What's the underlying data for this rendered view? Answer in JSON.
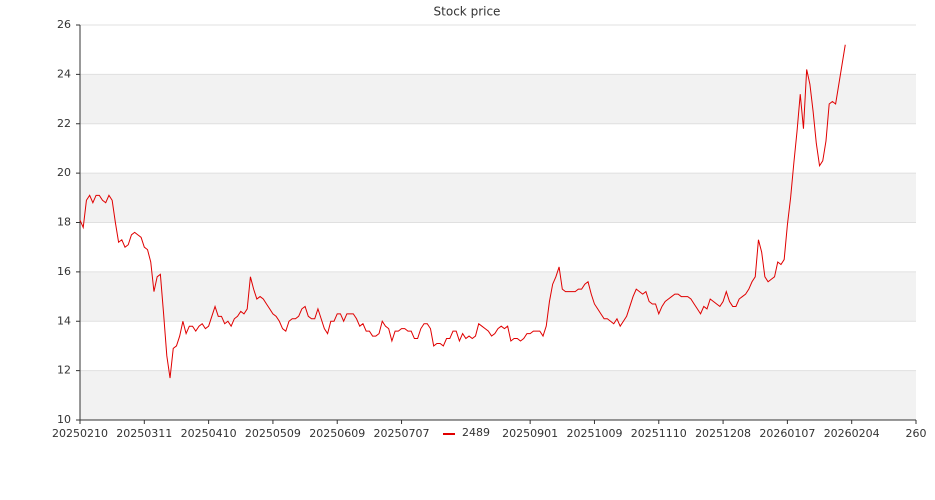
{
  "chart_data": {
    "type": "line",
    "title": "Stock price",
    "series": [
      {
        "name": "2489",
        "color": "#e00000",
        "values": [
          18.1,
          17.8,
          18.9,
          19.1,
          18.8,
          19.1,
          19.1,
          18.9,
          18.8,
          19.1,
          18.9,
          18.0,
          17.2,
          17.3,
          17.0,
          17.1,
          17.5,
          17.6,
          17.5,
          17.4,
          17.0,
          16.9,
          16.4,
          15.2,
          15.8,
          15.9,
          14.3,
          12.6,
          11.7,
          12.9,
          13.0,
          13.4,
          14.0,
          13.5,
          13.8,
          13.8,
          13.6,
          13.8,
          13.9,
          13.7,
          13.8,
          14.2,
          14.6,
          14.2,
          14.2,
          13.9,
          14.0,
          13.8,
          14.1,
          14.2,
          14.4,
          14.3,
          14.5,
          15.8,
          15.3,
          14.9,
          15.0,
          14.9,
          14.7,
          14.5,
          14.3,
          14.2,
          14.0,
          13.7,
          13.6,
          14.0,
          14.1,
          14.1,
          14.2,
          14.5,
          14.6,
          14.2,
          14.1,
          14.1,
          14.5,
          14.1,
          13.7,
          13.5,
          14.0,
          14.0,
          14.3,
          14.3,
          14.0,
          14.3,
          14.3,
          14.3,
          14.1,
          13.8,
          13.9,
          13.6,
          13.6,
          13.4,
          13.4,
          13.5,
          14.0,
          13.8,
          13.7,
          13.2,
          13.6,
          13.6,
          13.7,
          13.7,
          13.6,
          13.6,
          13.3,
          13.3,
          13.7,
          13.9,
          13.9,
          13.7,
          13.0,
          13.1,
          13.1,
          13.0,
          13.3,
          13.3,
          13.6,
          13.6,
          13.2,
          13.5,
          13.3,
          13.4,
          13.3,
          13.4,
          13.9,
          13.8,
          13.7,
          13.6,
          13.4,
          13.5,
          13.7,
          13.8,
          13.7,
          13.8,
          13.2,
          13.3,
          13.3,
          13.2,
          13.3,
          13.5,
          13.5,
          13.6,
          13.6,
          13.6,
          13.4,
          13.8,
          14.8,
          15.5,
          15.8,
          16.2,
          15.3,
          15.2,
          15.2,
          15.2,
          15.2,
          15.3,
          15.3,
          15.5,
          15.6,
          15.1,
          14.7,
          14.5,
          14.3,
          14.1,
          14.1,
          14.0,
          13.9,
          14.1,
          13.8,
          14.0,
          14.2,
          14.6,
          15.0,
          15.3,
          15.2,
          15.1,
          15.2,
          14.8,
          14.7,
          14.7,
          14.3,
          14.6,
          14.8,
          14.9,
          15.0,
          15.1,
          15.1,
          15.0,
          15.0,
          15.0,
          14.9,
          14.7,
          14.5,
          14.3,
          14.6,
          14.5,
          14.9,
          14.8,
          14.7,
          14.6,
          14.8,
          15.2,
          14.8,
          14.6,
          14.6,
          14.9,
          15.0,
          15.1,
          15.3,
          15.6,
          15.8,
          17.3,
          16.8,
          15.8,
          15.6,
          15.7,
          15.8,
          16.4,
          16.3,
          16.5,
          17.9,
          19.0,
          20.4,
          21.7,
          23.2,
          21.8,
          24.2,
          23.6,
          22.5,
          21.2,
          20.3,
          20.5,
          21.3,
          22.8,
          22.9,
          22.8,
          23.6,
          24.4,
          25.2
        ]
      }
    ],
    "xlim": [
      0,
      260
    ],
    "xticks": [
      {
        "value": 0,
        "label": "20250210"
      },
      {
        "value": 20,
        "label": "20250311"
      },
      {
        "value": 40,
        "label": "20250410"
      },
      {
        "value": 60,
        "label": "20250509"
      },
      {
        "value": 80,
        "label": "20250609"
      },
      {
        "value": 100,
        "label": "20250707"
      },
      {
        "value": 140,
        "label": "20250901"
      },
      {
        "value": 160,
        "label": "20251009"
      },
      {
        "value": 180,
        "label": "20251110"
      },
      {
        "value": 200,
        "label": "20251208"
      },
      {
        "value": 220,
        "label": "20260107"
      },
      {
        "value": 240,
        "label": "20260204"
      },
      {
        "value": 260,
        "label": "260"
      }
    ],
    "ylim": [
      10,
      26
    ],
    "yticks": [
      10,
      12,
      14,
      16,
      18,
      20,
      22,
      24,
      26
    ],
    "grid": true,
    "legend": "bottom"
  }
}
